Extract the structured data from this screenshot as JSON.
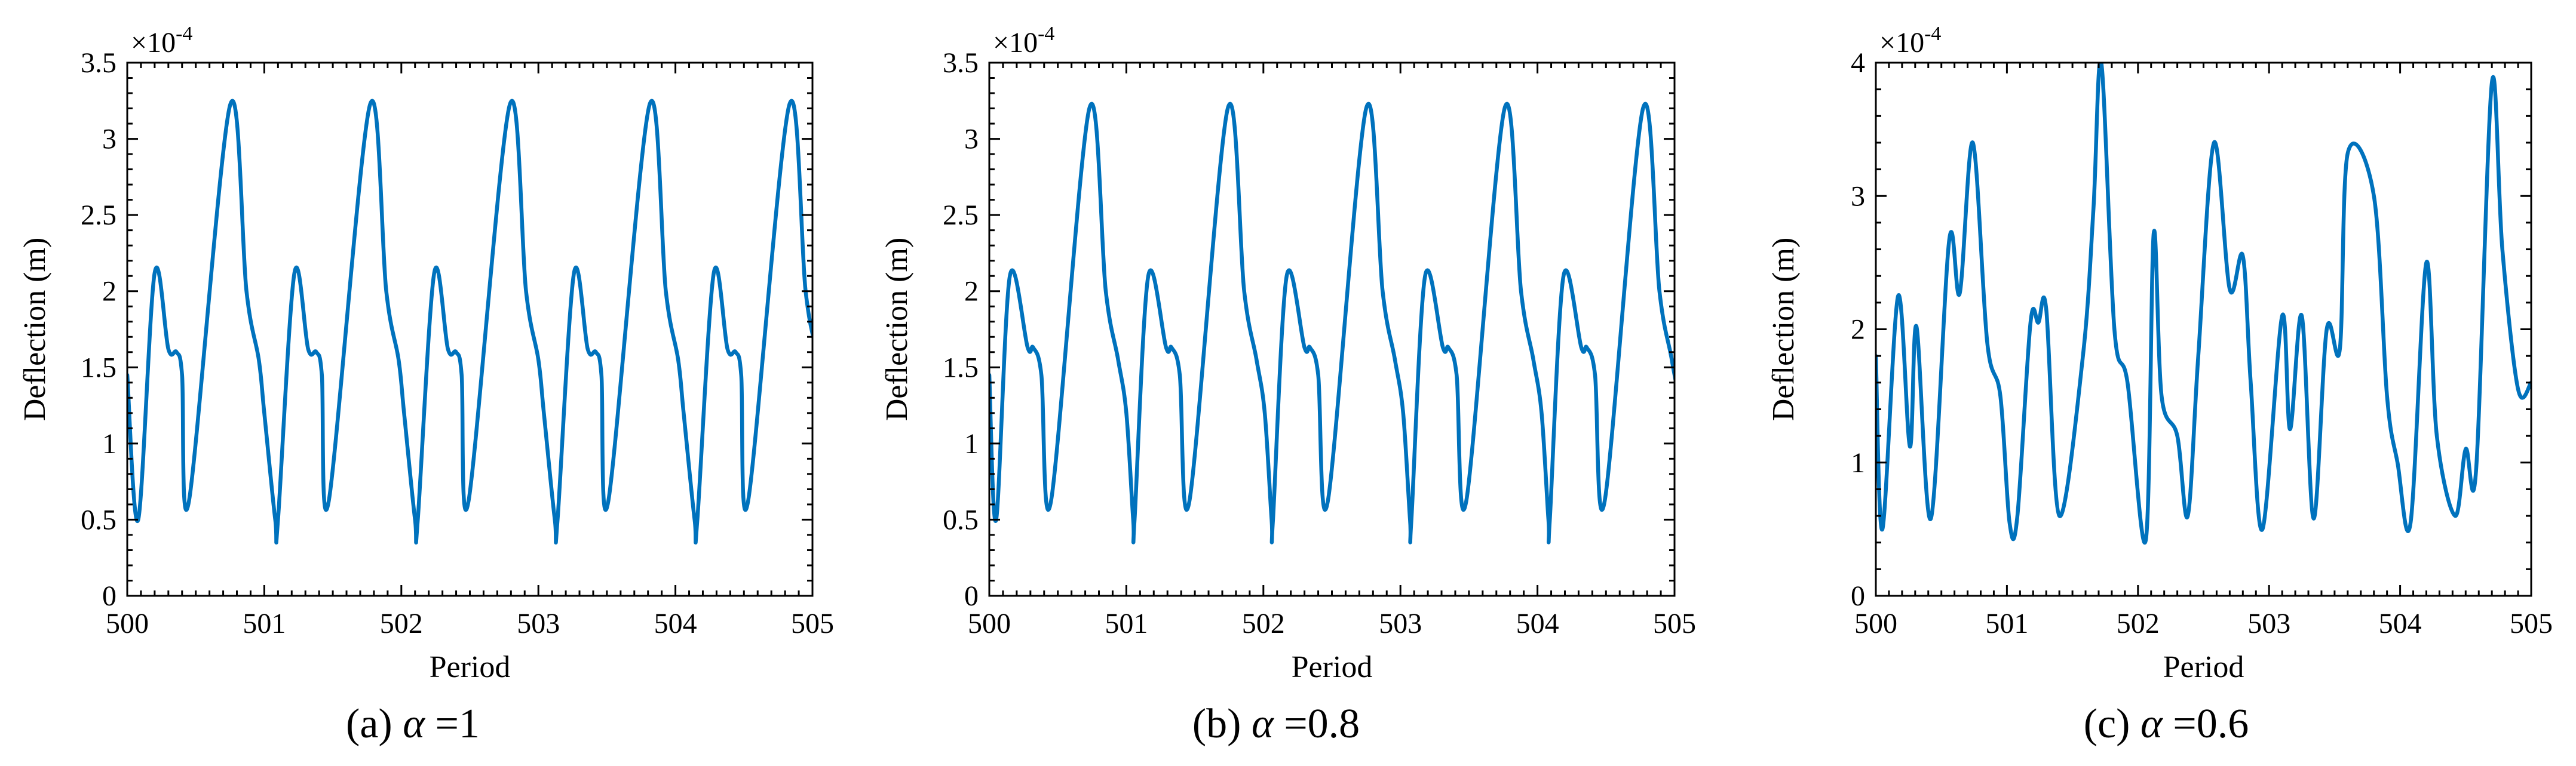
{
  "chart_data": [
    {
      "type": "line",
      "caption": {
        "prefix": "(a)",
        "symbol": "α",
        "rest": " =1"
      },
      "xlabel": "Period",
      "ylabel": "Deflection (m)",
      "y_exponent": {
        "base": "×10",
        "power": "-4"
      },
      "xlim": [
        500,
        505
      ],
      "ylim": [
        0,
        3.5
      ],
      "xticks": [
        500,
        501,
        502,
        503,
        504,
        505
      ],
      "yticks": [
        0,
        0.5,
        1,
        1.5,
        2,
        2.5,
        3,
        3.5
      ],
      "ytick_labels": [
        "0",
        "0.5",
        "1",
        "1.5",
        "2",
        "2.5",
        "3",
        "3.5"
      ],
      "color": "#0072BD",
      "series": [
        {
          "x": [
            500.0,
            500.08,
            500.2,
            500.3,
            500.36,
            500.4,
            500.45,
            500.75,
            500.87,
            500.96,
            501.0,
            501.08
          ],
          "y": [
            1.45,
            0.5,
            2.12,
            1.62,
            1.6,
            1.45,
            0.62,
            3.22,
            2.0,
            1.55,
            1.2,
            0.5
          ],
          "x_repeat_period": 1.02
        }
      ]
    },
    {
      "type": "line",
      "caption": {
        "prefix": "(b)",
        "symbol": "α",
        "rest": " =0.8"
      },
      "xlabel": "Period",
      "ylabel": "Deflection (m)",
      "y_exponent": {
        "base": "×10",
        "power": "-4"
      },
      "xlim": [
        500,
        505
      ],
      "ylim": [
        0,
        3.5
      ],
      "xticks": [
        500,
        501,
        502,
        503,
        504,
        505
      ],
      "yticks": [
        0,
        0.5,
        1,
        1.5,
        2,
        2.5,
        3,
        3.5
      ],
      "ytick_labels": [
        "0",
        "0.5",
        "1",
        "1.5",
        "2",
        "2.5",
        "3",
        "3.5"
      ],
      "color": "#0072BD",
      "series": [
        {
          "x": [
            500.0,
            500.05,
            500.15,
            500.28,
            500.32,
            500.38,
            500.45,
            500.73,
            500.85,
            500.94,
            501.0,
            501.05
          ],
          "y": [
            1.45,
            0.5,
            2.1,
            1.63,
            1.63,
            1.45,
            0.62,
            3.2,
            2.0,
            1.55,
            1.2,
            0.5
          ],
          "x_repeat_period": 1.01
        }
      ]
    },
    {
      "type": "line",
      "caption": {
        "prefix": "(c)",
        "symbol": "α",
        "rest": " =0.6"
      },
      "xlabel": "Period",
      "ylabel": "Deflection (m)",
      "y_exponent": {
        "base": "×10",
        "power": "-4"
      },
      "xlim": [
        500,
        505
      ],
      "ylim": [
        0,
        4
      ],
      "xticks": [
        500,
        501,
        502,
        503,
        504,
        505
      ],
      "yticks": [
        0,
        1,
        2,
        3,
        4
      ],
      "ytick_labels": [
        "0",
        "1",
        "2",
        "3",
        "4"
      ],
      "color": "#0072BD",
      "series": [
        {
          "x": [
            500.0,
            500.05,
            500.17,
            500.26,
            500.31,
            500.42,
            500.56,
            500.64,
            500.74,
            500.85,
            500.95,
            501.02,
            501.08,
            501.18,
            501.24,
            501.3,
            501.4,
            501.58,
            501.66,
            501.72,
            501.82,
            501.92,
            502.06,
            502.12,
            502.18,
            502.3,
            502.38,
            502.46,
            502.58,
            502.7,
            502.8,
            502.86,
            502.95,
            503.1,
            503.16,
            503.25,
            503.34,
            503.44,
            503.54,
            503.6,
            503.8,
            503.9,
            503.98,
            504.08,
            504.2,
            504.28,
            504.42,
            504.5,
            504.58,
            504.7,
            504.78,
            504.9,
            505.0
          ],
          "y": [
            1.8,
            0.5,
            2.25,
            1.12,
            2.02,
            0.58,
            2.67,
            2.27,
            3.4,
            1.9,
            1.5,
            0.55,
            0.6,
            2.05,
            2.05,
            2.15,
            0.6,
            1.8,
            2.9,
            4.0,
            2.0,
            1.6,
            0.42,
            2.72,
            1.5,
            1.2,
            0.6,
            1.8,
            3.4,
            2.3,
            2.55,
            1.6,
            0.5,
            2.1,
            1.25,
            2.1,
            0.58,
            2.0,
            1.85,
            3.32,
            3.0,
            1.5,
            1.0,
            0.55,
            2.5,
            1.2,
            0.6,
            1.1,
            0.95,
            3.85,
            2.6,
            1.55,
            1.6
          ]
        }
      ]
    }
  ]
}
